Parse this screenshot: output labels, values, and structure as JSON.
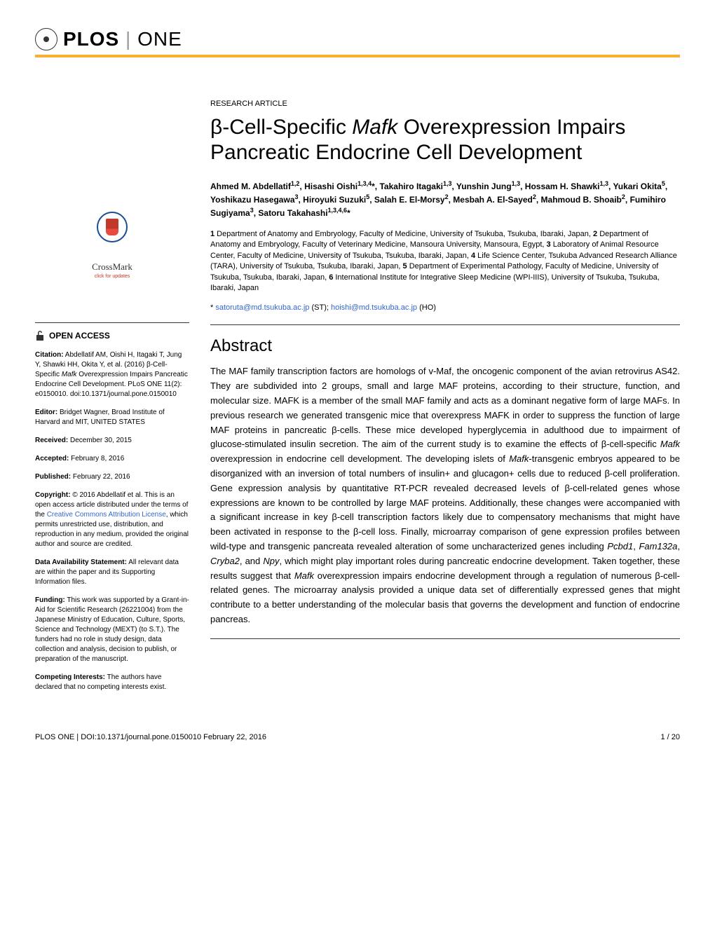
{
  "journal": {
    "logo_text": "PLOS",
    "logo_sub": "ONE"
  },
  "article": {
    "type": "RESEARCH ARTICLE",
    "title_html": "β-Cell-Specific <em>Mafk</em> Overexpression Impairs Pancreatic Endocrine Cell Development",
    "authors_html": "Ahmed M. Abdellatif<sup>1,2</sup>, Hisashi Oishi<sup>1,3,4</sup>*, Takahiro Itagaki<sup>1,3</sup>, Yunshin Jung<sup>1,3</sup>, Hossam H. Shawki<sup>1,3</sup>, Yukari Okita<sup>5</sup>, Yoshikazu Hasegawa<sup>3</sup>, Hiroyuki Suzuki<sup>5</sup>, Salah E. El-Morsy<sup>2</sup>, Mesbah A. El-Sayed<sup>2</sup>, Mahmoud B. Shoaib<sup>2</sup>, Fumihiro Sugiyama<sup>3</sup>, Satoru Takahashi<sup>1,3,4,6</sup>*",
    "affiliations_html": "<strong>1</strong> Department of Anatomy and Embryology, Faculty of Medicine, University of Tsukuba, Tsukuba, Ibaraki, Japan, <strong>2</strong> Department of Anatomy and Embryology, Faculty of Veterinary Medicine, Mansoura University, Mansoura, Egypt, <strong>3</strong> Laboratory of Animal Resource Center, Faculty of Medicine, University of Tsukuba, Tsukuba, Ibaraki, Japan, <strong>4</strong> Life Science Center, Tsukuba Advanced Research Alliance (TARA), University of Tsukuba, Tsukuba, Ibaraki, Japan, <strong>5</strong> Department of Experimental Pathology, Faculty of Medicine, University of Tsukuba, Tsukuba, Ibaraki, Japan, <strong>6</strong> International Institute for Integrative Sleep Medicine (WPI-IIIS), University of Tsukuba, Tsukuba, Ibaraki, Japan",
    "corresponding_prefix": "* ",
    "corresponding_email1": "satoruta@md.tsukuba.ac.jp",
    "corresponding_suffix1": " (ST); ",
    "corresponding_email2": "hoishi@md.tsukuba.ac.jp",
    "corresponding_suffix2": " (HO)"
  },
  "abstract": {
    "heading": "Abstract",
    "text_html": "The MAF family transcription factors are homologs of v-Maf, the oncogenic component of the avian retrovirus AS42. They are subdivided into 2 groups, small and large MAF proteins, according to their structure, function, and molecular size. MAFK is a member of the small MAF family and acts as a dominant negative form of large MAFs. In previous research we generated transgenic mice that overexpress MAFK in order to suppress the function of large MAF proteins in pancreatic β-cells. These mice developed hyperglycemia in adulthood due to impairment of glucose-stimulated insulin secretion. The aim of the current study is to examine the effects of β-cell-specific <em>Mafk</em> overexpression in endocrine cell development. The developing islets of <em>Mafk</em>-transgenic embryos appeared to be disorganized with an inversion of total numbers of insulin+ and glucagon+ cells due to reduced β-cell proliferation. Gene expression analysis by quantitative RT-PCR revealed decreased levels of β-cell-related genes whose expressions are known to be controlled by large MAF proteins. Additionally, these changes were accompanied with a significant increase in key β-cell transcription factors likely due to compensatory mechanisms that might have been activated in response to the β-cell loss. Finally, microarray comparison of gene expression profiles between wild-type and transgenic pancreata revealed alteration of some uncharacterized genes including <em>Pcbd1</em>, <em>Fam132a</em>, <em>Cryba2</em>, and <em>Npy</em>, which might play important roles during pancreatic endocrine development. Taken together, these results suggest that <em>Mafk</em> overexpression impairs endocrine development through a regulation of numerous β-cell-related genes. The microarray analysis provided a unique data set of differentially expressed genes that might contribute to a better understanding of the molecular basis that governs the development and function of endocrine pancreas."
  },
  "sidebar": {
    "crossmark_label": "CrossMark",
    "crossmark_sub": "click for updates",
    "open_access": "OPEN ACCESS",
    "citation_label": "Citation:",
    "citation_text_html": " Abdellatif AM, Oishi H, Itagaki T, Jung Y, Shawki HH, Okita Y, et al. (2016) β-Cell-Specific <em>Mafk</em> Overexpression Impairs Pancreatic Endocrine Cell Development. PLoS ONE 11(2): e0150010. doi:10.1371/journal.pone.0150010",
    "editor_label": "Editor:",
    "editor_text": " Bridget Wagner, Broad Institute of Harvard and MIT, UNITED STATES",
    "received_label": "Received:",
    "received_text": " December 30, 2015",
    "accepted_label": "Accepted:",
    "accepted_text": " February 8, 2016",
    "published_label": "Published:",
    "published_text": " February 22, 2016",
    "copyright_label": "Copyright:",
    "copyright_text_pre": " © 2016 Abdellatif et al. This is an open access article distributed under the terms of the ",
    "copyright_link": "Creative Commons Attribution License",
    "copyright_text_post": ", which permits unrestricted use, distribution, and reproduction in any medium, provided the original author and source are credited.",
    "data_label": "Data Availability Statement:",
    "data_text": " All relevant data are within the paper and its Supporting Information files.",
    "funding_label": "Funding:",
    "funding_text": " This work was supported by a Grant-in-Aid for Scientific Research (26221004) from the Japanese Ministry of Education, Culture, Sports, Science and Technology (MEXT) (to S.T.). The funders had no role in study design, data collection and analysis, decision to publish, or preparation of the manuscript.",
    "competing_label": "Competing Interests:",
    "competing_text": " The authors have declared that no competing interests exist."
  },
  "footer": {
    "left": "PLOS ONE | DOI:10.1371/journal.pone.0150010    February 22, 2016",
    "right": "1 / 20"
  },
  "colors": {
    "accent_orange": "#f8af2d",
    "link_blue": "#3366cc",
    "crossmark_blue": "#1a4d8f",
    "crossmark_red": "#c0392b"
  },
  "typography": {
    "title_fontsize": 30,
    "abstract_heading_fontsize": 24,
    "body_fontsize": 13,
    "sidebar_fontsize": 10,
    "authors_fontsize": 12
  }
}
